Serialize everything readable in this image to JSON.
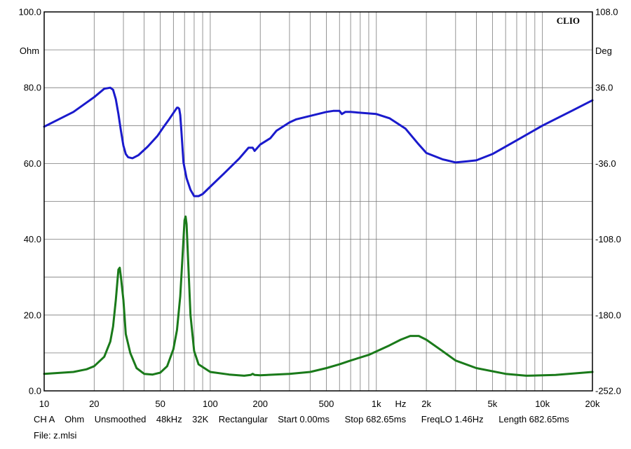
{
  "chart_data": {
    "type": "line",
    "title": "",
    "watermark": "CLIO",
    "x_scale": "log",
    "xlim": [
      10,
      20000
    ],
    "x_ticks": [
      {
        "value": 10,
        "label": "10"
      },
      {
        "value": 20,
        "label": "20"
      },
      {
        "value": 50,
        "label": "50"
      },
      {
        "value": 100,
        "label": "100"
      },
      {
        "value": 200,
        "label": "200"
      },
      {
        "value": 500,
        "label": "500"
      },
      {
        "value": 1000,
        "label": "1k"
      },
      {
        "value": 2000,
        "label": "2k"
      },
      {
        "value": 5000,
        "label": "5k"
      },
      {
        "value": 10000,
        "label": "10k"
      },
      {
        "value": 20000,
        "label": "20k"
      }
    ],
    "xlabel": "Hz",
    "xlabel_at": 1400,
    "ylim_left": [
      0,
      100
    ],
    "y_left_ticks": [
      "0.0",
      "20.0",
      "40.0",
      "60.0",
      "80.0",
      "100.0"
    ],
    "ylabel_left": "Ohm",
    "ylim_right": [
      -252,
      108
    ],
    "y_right_ticks": [
      "-252.0",
      "-180.0",
      "-108.0",
      "-36.0",
      "36.0",
      "108.0"
    ],
    "ylabel_right": "Deg",
    "grid": true,
    "series": [
      {
        "name": "",
        "axis": "right",
        "color": "#1a1acc",
        "x": [
          10,
          15,
          20,
          23,
          25,
          26,
          27,
          28,
          29,
          30,
          31,
          32,
          34,
          37,
          42,
          48,
          52,
          56,
          60,
          63,
          64,
          65,
          66,
          67,
          68,
          69,
          72,
          76,
          80,
          85,
          90,
          100,
          120,
          150,
          170,
          180,
          185,
          190,
          200,
          230,
          250,
          300,
          330,
          500,
          550,
          600,
          620,
          650,
          700,
          1000,
          1200,
          1500,
          1800,
          2000,
          2500,
          3000,
          3500,
          4000,
          5000,
          7000,
          10000,
          15000,
          20000
        ],
        "y": [
          -1,
          13,
          27,
          35,
          36,
          34,
          25,
          11,
          -5,
          -19,
          -27,
          -30,
          -31,
          -28,
          -20,
          -10,
          -2,
          5,
          12,
          17,
          17,
          16,
          10,
          -5,
          -20,
          -35,
          -50,
          -61,
          -67,
          -67,
          -65,
          -58,
          -46,
          -31,
          -21,
          -21,
          -24,
          -22,
          -18,
          -12,
          -5,
          3,
          6,
          13,
          14,
          14,
          11,
          13,
          13,
          11,
          7,
          -3,
          -18,
          -26,
          -32,
          -35,
          -34,
          -33,
          -27,
          -14,
          0,
          14,
          24
        ]
      },
      {
        "name": "",
        "axis": "left",
        "color": "#1a7a1a",
        "x": [
          10,
          15,
          18,
          20,
          23,
          25,
          26,
          27,
          28,
          28.5,
          29,
          30,
          31,
          33,
          36,
          40,
          45,
          50,
          55,
          60,
          63,
          66,
          68,
          70,
          71,
          72,
          74,
          76,
          80,
          85,
          100,
          130,
          160,
          175,
          180,
          185,
          200,
          300,
          400,
          500,
          600,
          700,
          900,
          1200,
          1400,
          1600,
          1800,
          2000,
          2500,
          3000,
          4000,
          6000,
          8000,
          12000,
          20000
        ],
        "y": [
          4.5,
          5,
          5.7,
          6.5,
          9,
          13,
          17,
          24,
          32,
          32.5,
          30,
          24,
          15,
          10,
          6,
          4.5,
          4.3,
          4.8,
          6.5,
          11,
          16,
          25,
          35,
          45,
          46,
          44,
          32,
          20,
          10.5,
          7,
          5,
          4.3,
          4,
          4.2,
          4.5,
          4.2,
          4.1,
          4.5,
          5,
          6,
          7,
          8,
          9.5,
          12,
          13.5,
          14.5,
          14.5,
          13.5,
          10.5,
          8,
          6,
          4.5,
          4,
          4.2,
          5
        ]
      }
    ]
  },
  "info_line": "CH A    Ohm    Unsmoothed    48kHz    32K    Rectangular    Start 0.00ms      Stop 682.65ms      FreqLO 1.46Hz      Length 682.65ms",
  "file_line": "File: z.mlsi"
}
